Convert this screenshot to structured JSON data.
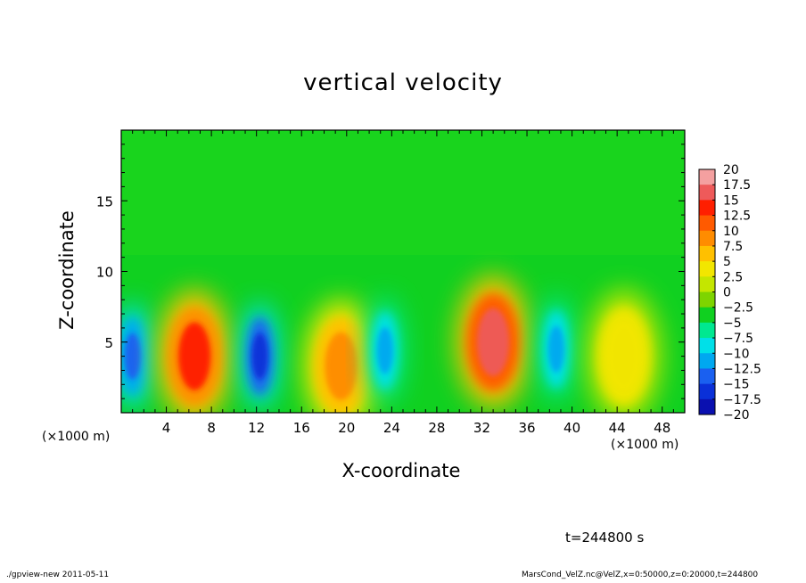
{
  "chart_data": {
    "type": "heatmap",
    "title": "vertical velocity",
    "xlabel": "X-coordinate",
    "ylabel": "Z-coordinate",
    "x_unit_label": "(×1000 m)",
    "xlim": [
      0,
      50
    ],
    "ylim": [
      0,
      20
    ],
    "x_ticks": [
      "4",
      "8",
      "12",
      "16",
      "20",
      "24",
      "28",
      "32",
      "36",
      "40",
      "44",
      "48"
    ],
    "y_ticks": [
      "5",
      "10",
      "15"
    ],
    "colorbar": {
      "labels": [
        "20",
        "17.5",
        "15",
        "12.5",
        "10",
        "7.5",
        "5",
        "2.5",
        "0",
        "−2.5",
        "−5",
        "−7.5",
        "−10",
        "−12.5",
        "−15",
        "−17.5",
        "−20"
      ],
      "colors": [
        "#f4a0a0",
        "#ee5a5a",
        "#ff1f00",
        "#ff5a00",
        "#ff8c00",
        "#ffc000",
        "#f2e600",
        "#c4e600",
        "#7ed400",
        "#10d020",
        "#00e890",
        "#00e0e8",
        "#00a8f0",
        "#1a60f0",
        "#0a30d8",
        "#0a10b0",
        "#6a2ad0"
      ]
    },
    "cells": [
      {
        "x": 1.0,
        "z": 4.0,
        "v": -13
      },
      {
        "x": 6.5,
        "z": 4.0,
        "v": 14
      },
      {
        "x": 12.3,
        "z": 4.0,
        "v": -15
      },
      {
        "x": 19.5,
        "z": 3.3,
        "v": 11
      },
      {
        "x": 23.4,
        "z": 4.4,
        "v": -11
      },
      {
        "x": 33.0,
        "z": 5.0,
        "v": 17
      },
      {
        "x": 38.6,
        "z": 4.5,
        "v": -9
      },
      {
        "x": 44.6,
        "z": 4.0,
        "v": 6
      }
    ]
  },
  "time_label": "t=244800 s",
  "footer": {
    "left": "./gpview-new  2011-05-11",
    "right": "MarsCond_VelZ.nc@VelZ,x=0:50000,z=0:20000,t=244800"
  }
}
